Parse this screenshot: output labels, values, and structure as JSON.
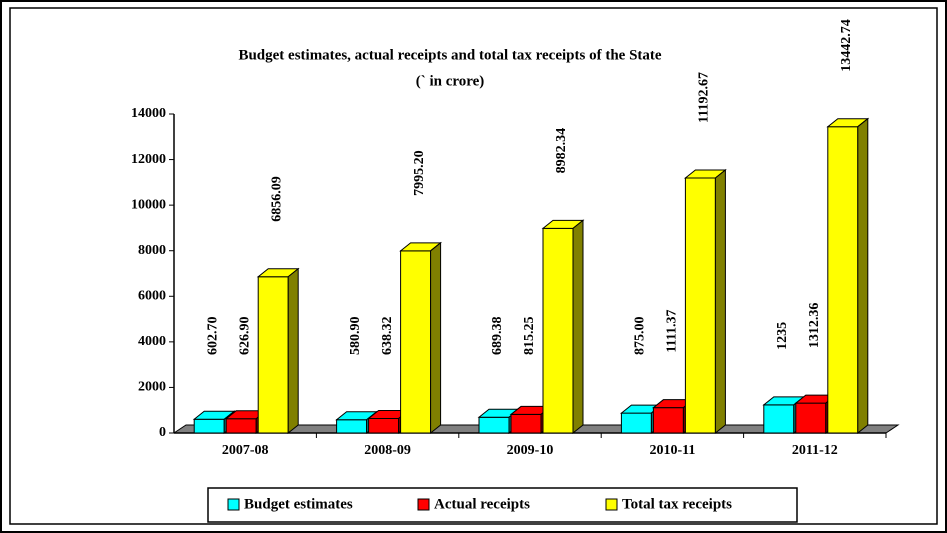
{
  "chart_data": {
    "type": "bar3d",
    "title": "Budget estimates, actual receipts and total tax receipts of the State",
    "subtitle": "(` in crore)",
    "categories": [
      "2007-08",
      "2008-09",
      "2009-10",
      "2010-11",
      "2011-12"
    ],
    "series": [
      {
        "name": "Budget estimates",
        "color": "#00ffff",
        "values": [
          602.7,
          580.9,
          689.38,
          875.0,
          1235
        ],
        "value_labels": [
          "602.70",
          "580.90",
          "689.38",
          "875.00",
          "1235"
        ]
      },
      {
        "name": "Actual receipts",
        "color": "#ff0000",
        "values": [
          626.9,
          638.32,
          815.25,
          1111.37,
          1312.36
        ],
        "value_labels": [
          "626.90",
          "638.32",
          "815.25",
          "1111.37",
          "1312.36"
        ]
      },
      {
        "name": "Total tax receipts",
        "color": "#ffff00",
        "values": [
          6856.09,
          7995.2,
          8982.34,
          11192.67,
          13442.74
        ],
        "value_labels": [
          "6856.09",
          "7995.20",
          "8982.34",
          "11192.67",
          "13442.74"
        ]
      }
    ],
    "ylim": [
      0,
      14000
    ],
    "yticks": [
      0,
      2000,
      4000,
      6000,
      8000,
      10000,
      12000,
      14000
    ],
    "legend": "bottom"
  }
}
